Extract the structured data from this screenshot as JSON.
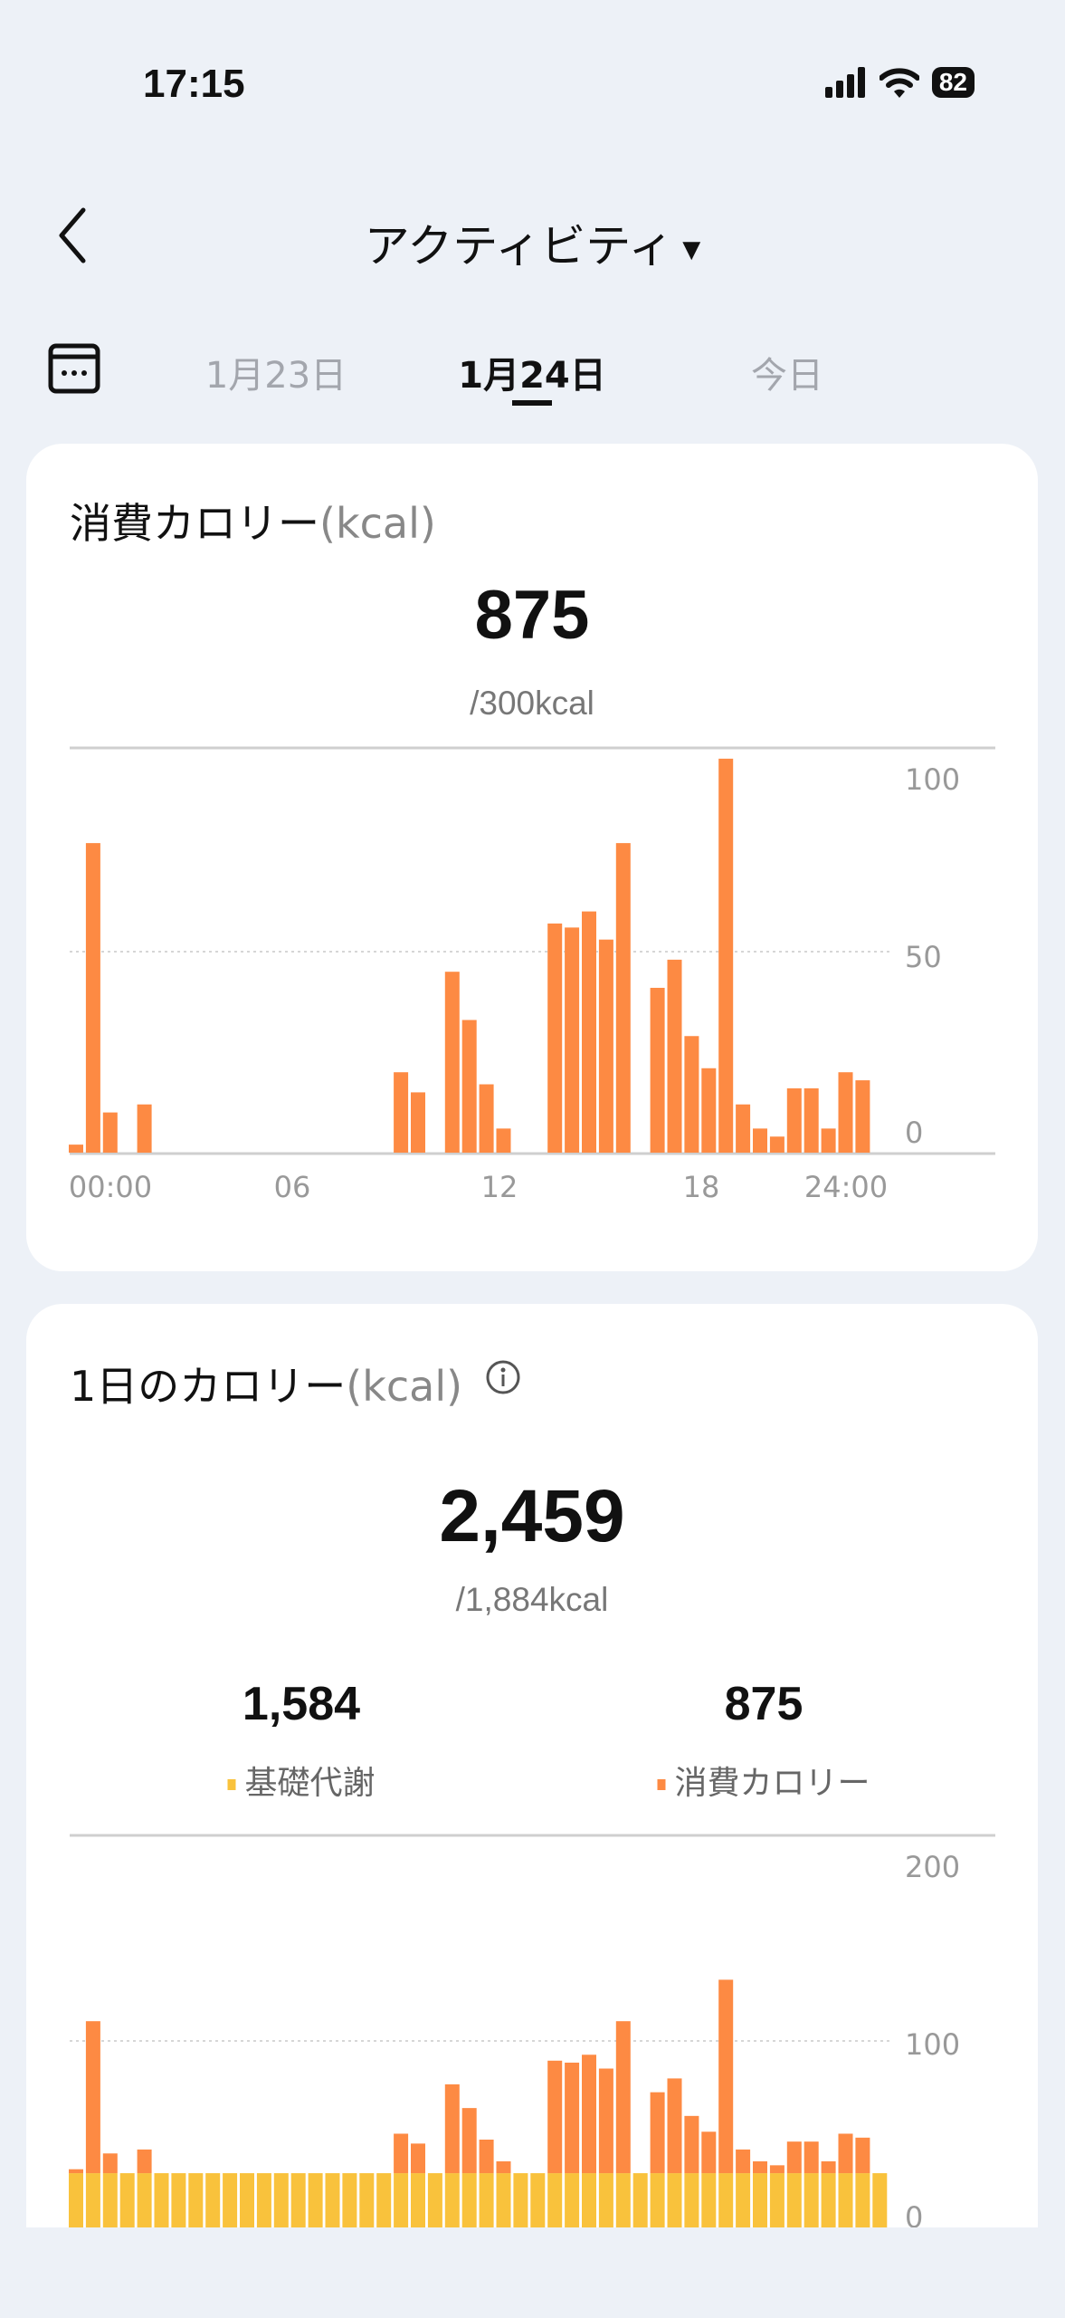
{
  "status_bar": {
    "time": "17:15",
    "battery": "82"
  },
  "header": {
    "title": "アクティビティ",
    "back_icon": "chevron-left-icon",
    "dropdown_icon": "caret-down-icon"
  },
  "date_tabs": {
    "calendar_icon": "calendar-icon",
    "items": [
      {
        "label": "1月23日",
        "active": false
      },
      {
        "label": "1月24日",
        "active": true
      },
      {
        "label": "今日",
        "active": false
      }
    ]
  },
  "active_card": {
    "title": "消費カロリー",
    "unit": "(kcal)",
    "value": "875",
    "goal": "/300kcal"
  },
  "daily_card": {
    "title": "1日のカロリー",
    "unit": "(kcal)",
    "info_icon": "info-icon",
    "value": "2,459",
    "goal": "/1,884kcal",
    "breakdown": [
      {
        "value": "1,584",
        "label": "基礎代謝",
        "color": "#f9c23c"
      },
      {
        "value": "875",
        "label": "消費カロリー",
        "color": "#fd8a43"
      }
    ]
  },
  "chart_data": [
    {
      "type": "bar",
      "title": "",
      "xlabel": "",
      "ylabel": "",
      "ylim": [
        0,
        100
      ],
      "x_ticks": [
        "00:00",
        "06",
        "12",
        "18",
        "24:00"
      ],
      "y_ticks": [
        "100",
        "50",
        "0"
      ],
      "grid": true,
      "color": "#fd8a43",
      "values": [
        2,
        77,
        10,
        0,
        12,
        0,
        0,
        0,
        0,
        0,
        0,
        0,
        0,
        0,
        0,
        0,
        0,
        0,
        0,
        20,
        15,
        0,
        45,
        33,
        17,
        6,
        0,
        0,
        57,
        56,
        60,
        53,
        77,
        0,
        41,
        48,
        29,
        21,
        98,
        12,
        6,
        4,
        16,
        16,
        6,
        20,
        18,
        0
      ]
    },
    {
      "type": "bar",
      "stacked": true,
      "title": "",
      "xlabel": "",
      "ylabel": "",
      "ylim": [
        0,
        200
      ],
      "y_ticks": [
        "200",
        "100",
        "0"
      ],
      "grid": true,
      "series": [
        {
          "name": "基礎代謝",
          "color": "#f9c23c",
          "values": [
            33,
            33,
            33,
            33,
            33,
            33,
            33,
            33,
            33,
            33,
            33,
            33,
            33,
            33,
            33,
            33,
            33,
            33,
            33,
            33,
            33,
            33,
            33,
            33,
            33,
            33,
            33,
            33,
            33,
            33,
            33,
            33,
            33,
            33,
            33,
            33,
            33,
            33,
            33,
            33,
            33,
            33,
            33,
            33,
            33,
            33,
            33,
            33
          ]
        },
        {
          "name": "消費カロリー",
          "color": "#fd8a43",
          "values": [
            2,
            77,
            10,
            0,
            12,
            0,
            0,
            0,
            0,
            0,
            0,
            0,
            0,
            0,
            0,
            0,
            0,
            0,
            0,
            20,
            15,
            0,
            45,
            33,
            17,
            6,
            0,
            0,
            57,
            56,
            60,
            53,
            77,
            0,
            41,
            48,
            29,
            21,
            98,
            12,
            6,
            4,
            16,
            16,
            6,
            20,
            18,
            0
          ]
        }
      ]
    }
  ]
}
